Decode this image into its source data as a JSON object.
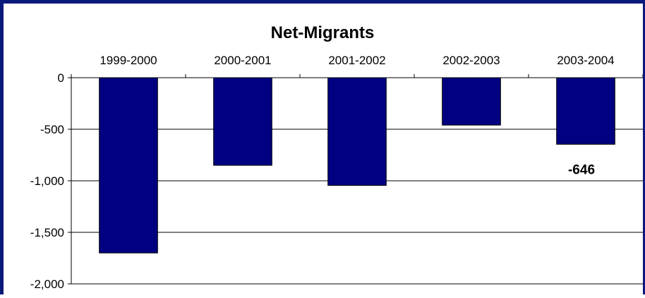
{
  "chart_data": {
    "type": "bar",
    "title": "Net-Migrants",
    "categories": [
      "1999-2000",
      "2000-2001",
      "2001-2002",
      "2002-2003",
      "2003-2004"
    ],
    "values": [
      -1700,
      -850,
      -1045,
      -460,
      -646
    ],
    "ylim": [
      -2000,
      0
    ],
    "yticks": [
      0,
      -500,
      -1000,
      -1500,
      -2000
    ],
    "ytick_labels": [
      "0",
      "-500",
      "-1,000",
      "-1,500",
      "-2,000"
    ],
    "grid": true,
    "xaxis_position": "top",
    "bar_color": "#000080",
    "data_labels": [
      {
        "category_index": 4,
        "text": "-646"
      }
    ]
  }
}
